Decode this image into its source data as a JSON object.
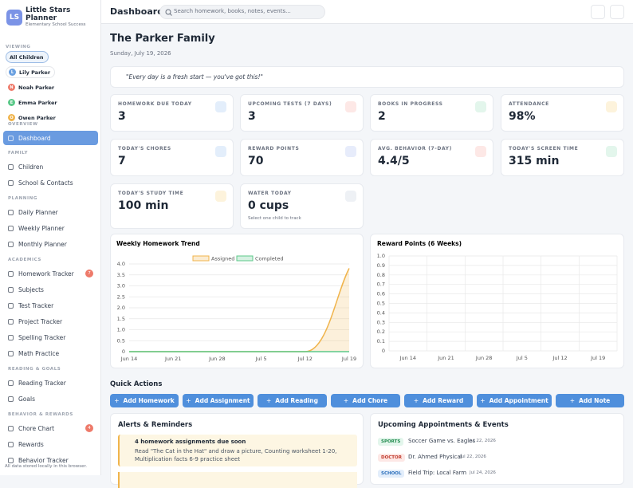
{
  "app": {
    "logo": "LS",
    "name": "Little Stars Planner",
    "tagline": "Elementary School Success"
  },
  "viewing": {
    "label": "VIEWING",
    "all": "All Children",
    "children": [
      {
        "initial": "L",
        "name": "Lily Parker"
      },
      {
        "initial": "N",
        "name": "Noah Parker"
      },
      {
        "initial": "E",
        "name": "Emma Parker"
      },
      {
        "initial": "O",
        "name": "Owen Parker"
      }
    ]
  },
  "sections": [
    {
      "label": "OVERVIEW",
      "items": [
        {
          "label": "Dashboard"
        }
      ]
    },
    {
      "label": "FAMILY",
      "items": [
        {
          "label": "Children"
        },
        {
          "label": "School & Contacts"
        }
      ]
    },
    {
      "label": "PLANNING",
      "items": [
        {
          "label": "Daily Planner"
        },
        {
          "label": "Weekly Planner"
        },
        {
          "label": "Monthly Planner"
        }
      ]
    },
    {
      "label": "ACADEMICS",
      "items": [
        {
          "label": "Homework Tracker",
          "badge": 7
        },
        {
          "label": "Subjects"
        },
        {
          "label": "Test Tracker"
        },
        {
          "label": "Project Tracker"
        },
        {
          "label": "Spelling Tracker"
        },
        {
          "label": "Math Practice"
        }
      ]
    },
    {
      "label": "READING & GOALS",
      "items": [
        {
          "label": "Reading Tracker"
        },
        {
          "label": "Goals"
        }
      ]
    },
    {
      "label": "BEHAVIOR & REWARDS",
      "items": [
        {
          "label": "Chore Chart",
          "badge": 4
        },
        {
          "label": "Rewards"
        },
        {
          "label": "Behavior Tracker"
        }
      ]
    }
  ],
  "footer": "All data stored locally in this browser.",
  "topbar": {
    "title": "Dashboard",
    "search": "Search homework, books, notes, events..."
  },
  "header": {
    "title": "The Parker Family",
    "date": "Sunday, July 19, 2026",
    "quote": "\"Every day is a fresh start — you've got this!\""
  },
  "stats": [
    {
      "label": "HOMEWORK DUE TODAY",
      "value": "3"
    },
    {
      "label": "UPCOMING TESTS (7 DAYS)",
      "value": "3"
    },
    {
      "label": "BOOKS IN PROGRESS",
      "value": "2"
    },
    {
      "label": "ATTENDANCE",
      "value": "98%"
    },
    {
      "label": "TODAY'S CHORES",
      "value": "7"
    },
    {
      "label": "REWARD POINTS",
      "value": "70"
    },
    {
      "label": "AVG. BEHAVIOR (7-DAY)",
      "value": "4.4/5"
    },
    {
      "label": "TODAY'S SCREEN TIME",
      "value": "315 min"
    },
    {
      "label": "TODAY'S STUDY TIME",
      "value": "100 min"
    },
    {
      "label": "WATER TODAY",
      "value": "0 cups",
      "note": "Select one child to track"
    }
  ],
  "chart_data": [
    {
      "type": "line",
      "title": "Weekly Homework Trend",
      "categories": [
        "Jun 14",
        "Jun 21",
        "Jun 28",
        "Jul 5",
        "Jul 12",
        "Jul 19"
      ],
      "series": [
        {
          "name": "Assigned",
          "color": "#f0b44c",
          "values": [
            0,
            0,
            0,
            0,
            0,
            3.8
          ]
        },
        {
          "name": "Completed",
          "color": "#5cc98a",
          "values": [
            0,
            0,
            0,
            0,
            0,
            0
          ]
        }
      ],
      "ylim": [
        0,
        4
      ],
      "yticks": [
        0,
        0.5,
        {
          "value": 1,
          "label": "1.0"
        },
        1.5,
        {
          "value": 2,
          "label": "2.0"
        },
        2.5,
        {
          "value": 3,
          "label": "3.0"
        },
        3.5,
        {
          "value": 4,
          "label": "4.0"
        }
      ],
      "grid": true,
      "legend": "top"
    },
    {
      "type": "line",
      "title": "Reward Points (6 Weeks)",
      "categories": [
        "Jun 14",
        "Jun 21",
        "Jun 28",
        "Jul 5",
        "Jul 12",
        "Jul 19"
      ],
      "ylim": [
        0,
        1
      ],
      "yticks": [
        0,
        0.1,
        0.2,
        0.3,
        0.4,
        0.5,
        0.6,
        0.7,
        0.8,
        0.9,
        {
          "value": 1,
          "label": "1.0"
        }
      ],
      "grid": true
    }
  ],
  "quick_actions": {
    "title": "Quick Actions",
    "buttons": [
      "Add Homework",
      "Add Assignment",
      "Add Reading",
      "Add Chore",
      "Add Reward",
      "Add Appointment",
      "Add Note"
    ]
  },
  "alerts": {
    "title": "Alerts & Reminders",
    "items": [
      {
        "title": "4 homework assignments due soon",
        "text": "Read \"The Cat in the Hat\" and draw a picture, Counting worksheet 1-20, Multiplication facts 6-9 practice sheet"
      }
    ]
  },
  "events": {
    "title": "Upcoming Appointments & Events",
    "items": [
      {
        "tag": "SPORTS",
        "title": "Soccer Game vs. Eagles",
        "date": "Jul 22, 2026"
      },
      {
        "tag": "DOCTOR",
        "title": "Dr. Ahmed Physical",
        "date": "Jul 22, 2026"
      },
      {
        "tag": "SCHOOL",
        "title": "Field Trip: Local Farm",
        "date": "Jul 24, 2026"
      }
    ]
  }
}
